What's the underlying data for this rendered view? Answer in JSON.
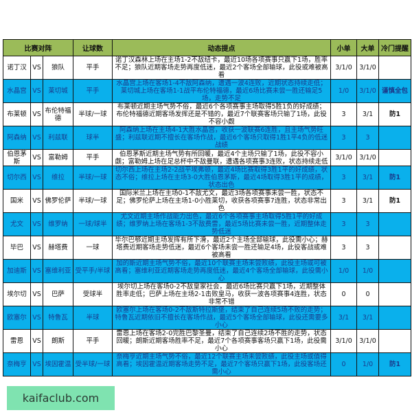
{
  "header": {
    "match": "比赛对阵",
    "handicap": "让球数",
    "analysis": "动态提点",
    "small": "小单",
    "big": "大单",
    "upset": "冷门提醒"
  },
  "colors": {
    "header_bg": "#9bbb59",
    "highlight_row": "#0ab0ec",
    "watermark_bg": "#7fe3b0"
  },
  "rows": [
    {
      "home": "诺丁汉",
      "vs": "VS",
      "away": "狼队",
      "handicap": "平手",
      "analysis": "诺丁汉森林上场在主场1-2不敌纽卡，最近10场各项赛事只赢下1场，胜率不足；狼队近期客场走势再度低迷，最近2个客场全部输球，此役或难被高看",
      "small": "3/1/0",
      "big": "3/1/0",
      "upset": ""
    },
    {
      "home": "水晶宫",
      "vs": "VS",
      "away": "莱切城",
      "handicap": "平手",
      "analysis": "水晶宫上场在客场1-4不敌阿森纳，遭遇一波4连败，近期状态持续走低；莱切城上场在客场1-1战平布伦特福德，最近6场比赛未尝一胜还输足5场，走势不足",
      "small": "1/0",
      "big": "3/1/0",
      "upset": "谨慎全包"
    },
    {
      "home": "布莱顿",
      "vs": "VS",
      "away": "布伦特福德",
      "handicap": "半球/一球",
      "analysis": "布莱顿近期主场气势不俗，最近6个各项赛事主场取得5胜1负的好成绩；布伦特福德近期客场发挥还是不错的，最近7个联赛客场只输了1场，此役不容小觑",
      "small": "3",
      "big": "3/1",
      "upset": "防1"
    },
    {
      "home": "阿森纳",
      "vs": "VS",
      "away": "利兹联",
      "handicap": "球半",
      "analysis": "阿森纳上场在主场4-1大胜水晶宫，收获一波联赛6连胜，且主场气势旺盛；利兹联近期不擅长在客场作战，最近6个客场只取得1胜1平4负的低迷战绩",
      "small": "3",
      "big": "3",
      "upset": ""
    },
    {
      "home": "伯恩茅斯",
      "vs": "VS",
      "away": "富勒姆",
      "handicap": "平手",
      "analysis": "伯恩茅斯近期主场气势有所回暖，最近4个主场只输了1场，此役不容小觑；富勒姆上场在足总杯中不敌曼联，遭遇各项赛事3连败，状态持续走低",
      "small": "3/1/0",
      "big": "3/1/0",
      "upset": ""
    },
    {
      "home": "切尔西",
      "vs": "VS",
      "away": "维拉",
      "handicap": "半球/一球",
      "analysis": "切尔西上场在主场2-2战平埃弗顿，最近4场比赛取得3胜1平的好成绩，状态不俗；维拉上场在主场3-0大胜伯恩茅斯，最近4场取得3胜1平的成绩，状态出色",
      "small": "3",
      "big": "3/1",
      "upset": "防1"
    },
    {
      "home": "国米",
      "vs": "VS",
      "away": "佛罗伦萨",
      "handicap": "半球/一球",
      "analysis": "国际米兰上场在主场0-1不敌尤文，最近3场各项赛事未尝一胜，状态不足；佛罗伦萨上场在主场1-0小胜莱切，收获各项赛事7连胜，状态非常出色",
      "small": "3",
      "big": "3/1",
      "upset": "防1"
    },
    {
      "home": "尤文",
      "vs": "VS",
      "away": "维罗纳",
      "handicap": "一球/球半",
      "analysis": "尤文近期主场作战能力出色，最近6个各项赛事主场取得5胜1平的好成绩；维罗纳上场在客场1-3不敌费雷，最近5场比赛未尝一胜，近期整体走势低迷",
      "small": "3",
      "big": "3",
      "upset": ""
    },
    {
      "home": "毕巴",
      "vs": "VS",
      "away": "赫塔费",
      "handicap": "一球",
      "analysis": "毕尔巴鄂近期主场发挥有所下滑，最近2个主场全部输球，此役需小心；赫塔费近期客场走势低迷，最近6个客场未尝一胜还输足4场，此役客战或难被高看",
      "small": "3",
      "big": "3",
      "upset": ""
    },
    {
      "home": "加迪斯",
      "vs": "VS",
      "away": "塞维利亚",
      "handicap": "受平手/半球",
      "analysis": "加的斯近期主场气势不俗，最近10个联赛主场未尝败绩，此役主场或可被高看；塞维利亚近期客场走势再度低迷，最近4个客场全部输球，此役需小心",
      "small": "1/0",
      "big": "1/0",
      "upset": ""
    },
    {
      "home": "埃尔切",
      "vs": "VS",
      "away": "巴萨",
      "handicap": "受球半",
      "analysis": "埃尔切上场在客场0-2不敌皇家社会，最近6场比赛只赢下1场，近期整体胜率走低；巴萨上场在主场2-1击败皇马，收获一波各项赛事4连胜，状态非常不错",
      "small": "0",
      "big": "0",
      "upset": ""
    },
    {
      "home": "欧塞尔",
      "vs": "VS",
      "away": "特鲁瓦",
      "handicap": "半球",
      "analysis": "欧塞尔上场在客场0-2不敌斯特拉斯堡，结束了自己连续5场不败的走势；特鲁瓦近期依旧不擅长在客场作战，最近5个客场全部输球，此役还需要多小心",
      "small": "3/1",
      "big": "3/1",
      "upset": ""
    },
    {
      "home": "雷恩",
      "vs": "VS",
      "away": "朗斯",
      "handicap": "平手",
      "analysis": "雷恩上场在客场2-0完胜巴黎圣曼，结束了自己连续2场不胜的走势，状态回暖；朗斯近期客场胜率不足，最近7个各项赛事客场只赢下1场，此役需小心",
      "small": "3/1/0",
      "big": "3/1/0",
      "upset": ""
    },
    {
      "home": "奈梅亨",
      "vs": "VS",
      "away": "埃因霍温",
      "handicap": "受半球/一球",
      "analysis": "奈梅亨近期主场气势不俗，最近12个联赛主场未尝败绩，此役主场或值得高看；埃因霍温近期客场走势不足，最近7个客场只赢下1场，此役客场还需小心",
      "small": "0",
      "big": "1/0",
      "upset": "防1"
    }
  ],
  "watermark": "kaifaclub.com"
}
